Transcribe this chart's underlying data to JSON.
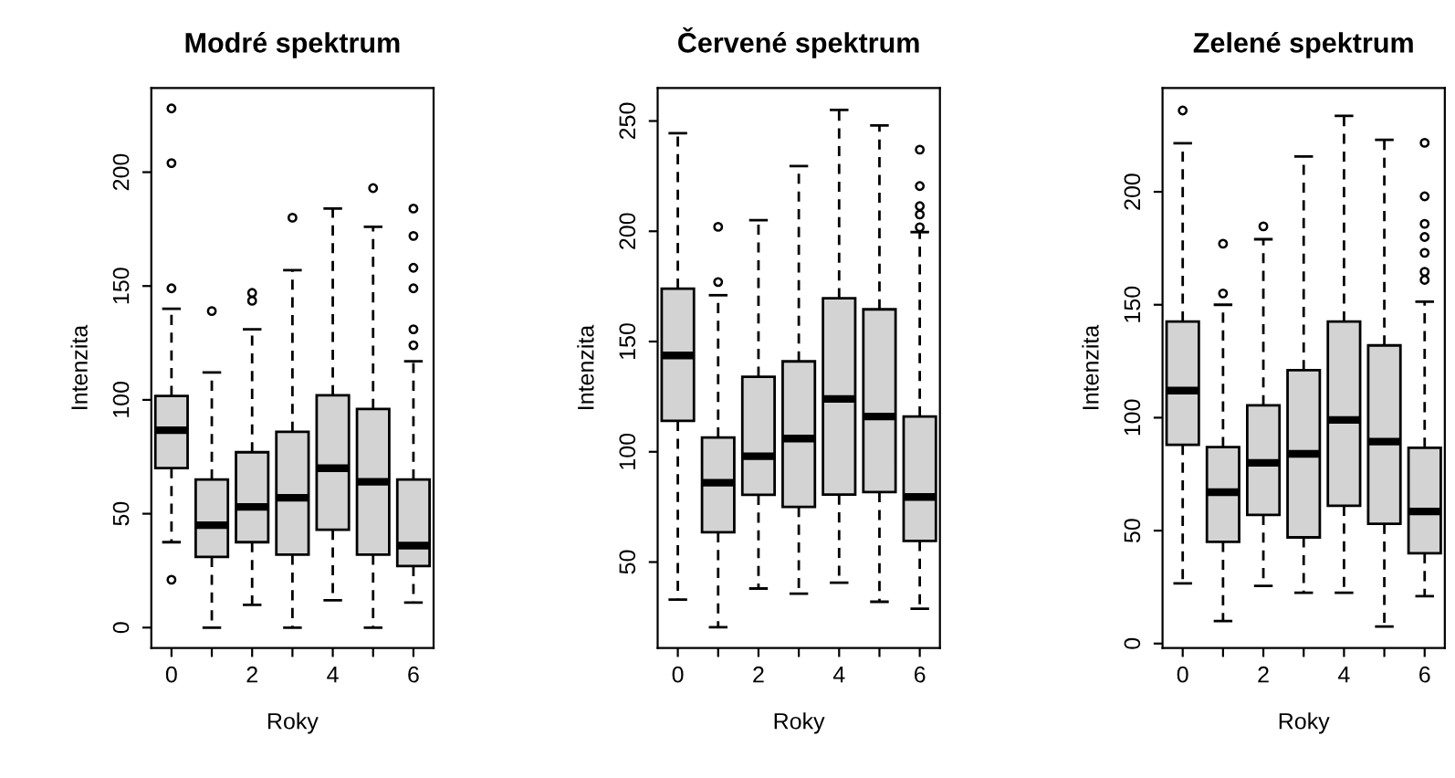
{
  "chart_data": [
    {
      "type": "box",
      "title": "Modré spektrum",
      "xlabel": "Roky",
      "ylabel": "Intenzita",
      "categories": [
        "0",
        null,
        "2",
        null,
        "4",
        null,
        "6"
      ],
      "ylim": [
        -9,
        237
      ],
      "yticks": [
        0,
        50,
        100,
        150,
        200
      ],
      "series": [
        {
          "color": "#d3d3d3",
          "boxes": [
            {
              "low": 37.5,
              "q1": 70,
              "median": 86.7,
              "q3": 101.7,
              "high": 140,
              "outliers": [
                21,
                149,
                204,
                228
              ]
            },
            {
              "low": 0,
              "q1": 31,
              "median": 45,
              "q3": 65,
              "high": 112,
              "outliers": [
                139
              ]
            },
            {
              "low": 10,
              "q1": 37.5,
              "median": 53,
              "q3": 77,
              "high": 131,
              "outliers": [
                143.5,
                147
              ]
            },
            {
              "low": 0,
              "q1": 32,
              "median": 57,
              "q3": 86,
              "high": 157,
              "outliers": [
                180
              ]
            },
            {
              "low": 12,
              "q1": 43,
              "median": 70,
              "q3": 102,
              "high": 184
            },
            {
              "low": 0,
              "q1": 32,
              "median": 64,
              "q3": 96,
              "high": 176,
              "outliers": [
                193
              ]
            },
            {
              "low": 11,
              "q1": 27,
              "median": 36,
              "q3": 65,
              "high": 117,
              "outliers": [
                124,
                131,
                149,
                158,
                172,
                184
              ]
            }
          ]
        }
      ]
    },
    {
      "type": "box",
      "title": "Červené spektrum",
      "xlabel": "Roky",
      "ylabel": "Intenzita",
      "categories": [
        "0",
        null,
        "2",
        null,
        "4",
        null,
        "6"
      ],
      "ylim": [
        11,
        265
      ],
      "yticks": [
        50,
        100,
        150,
        200,
        250
      ],
      "series": [
        {
          "color": "#d3d3d3",
          "boxes": [
            {
              "low": 33,
              "q1": 114,
              "median": 143.7,
              "q3": 174,
              "high": 244.5
            },
            {
              "low": 20.5,
              "q1": 63.5,
              "median": 86,
              "q3": 106.5,
              "high": 171,
              "outliers": [
                177,
                202
              ]
            },
            {
              "low": 38,
              "q1": 80.5,
              "median": 98,
              "q3": 134,
              "high": 205
            },
            {
              "low": 35.7,
              "q1": 75,
              "median": 106,
              "q3": 141,
              "high": 229.6
            },
            {
              "low": 40.6,
              "q1": 80.6,
              "median": 124,
              "q3": 169.6,
              "high": 255
            },
            {
              "low": 32,
              "q1": 81.7,
              "median": 116,
              "q3": 164.6,
              "high": 248
            },
            {
              "low": 28.8,
              "q1": 59.6,
              "median": 79.5,
              "q3": 116,
              "high": 199.6,
              "outliers": [
                201.8,
                207.6,
                211.4,
                220.5,
                237
              ]
            }
          ]
        }
      ]
    },
    {
      "type": "box",
      "title": "Zelené spektrum",
      "xlabel": "Roky",
      "ylabel": "Intenzita",
      "categories": [
        "0",
        null,
        "2",
        null,
        "4",
        null,
        "6"
      ],
      "ylim": [
        -2,
        246
      ],
      "yticks": [
        0,
        50,
        100,
        150,
        200
      ],
      "series": [
        {
          "color": "#d3d3d3",
          "boxes": [
            {
              "low": 26.6,
              "q1": 88,
              "median": 112,
              "q3": 142.6,
              "high": 221.5,
              "outliers": [
                236
              ]
            },
            {
              "low": 10,
              "q1": 45,
              "median": 67,
              "q3": 87,
              "high": 150,
              "outliers": [
                155,
                177
              ]
            },
            {
              "low": 25.5,
              "q1": 57,
              "median": 80,
              "q3": 105.5,
              "high": 179,
              "outliers": [
                184.7
              ]
            },
            {
              "low": 22.5,
              "q1": 47,
              "median": 84,
              "q3": 121,
              "high": 215.6
            },
            {
              "low": 22.5,
              "q1": 61,
              "median": 99,
              "q3": 142.6,
              "high": 233.6
            },
            {
              "low": 7.5,
              "q1": 53,
              "median": 89.4,
              "q3": 132,
              "high": 223
            },
            {
              "low": 21,
              "q1": 40,
              "median": 58.5,
              "q3": 86.7,
              "high": 151.4,
              "outliers": [
                161,
                164.6,
                173,
                180,
                185.8,
                198,
                221.7
              ]
            }
          ]
        }
      ]
    }
  ]
}
